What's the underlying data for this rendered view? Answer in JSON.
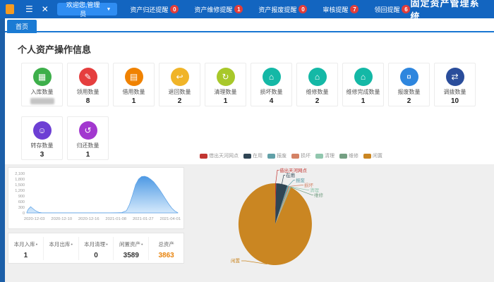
{
  "header": {
    "title": "固定资产管理系统",
    "welcome": "欢迎您,管理员",
    "menu": [
      {
        "label": "资产归还提醒",
        "badge": "0"
      },
      {
        "label": "资产维修提醒",
        "badge": "1"
      },
      {
        "label": "资产报废提醒",
        "badge": "0"
      },
      {
        "label": "审核提醒",
        "badge": "7"
      },
      {
        "label": "领回提醒",
        "badge": "6"
      }
    ]
  },
  "tabs": [
    {
      "label": "首页",
      "active": true
    }
  ],
  "section_title": "个人资产操作信息",
  "cards": [
    {
      "label": "入库数量",
      "value": "",
      "redacted": true,
      "color": "#3daf4a",
      "icon": "bar-chart-icon",
      "glyph": "▦"
    },
    {
      "label": "领用数量",
      "value": "8",
      "redacted": false,
      "color": "#e53e3e",
      "icon": "document-icon",
      "glyph": "✎"
    },
    {
      "label": "借用数量",
      "value": "1",
      "redacted": false,
      "color": "#f08200",
      "icon": "layers-icon",
      "glyph": "▤"
    },
    {
      "label": "退回数量",
      "value": "2",
      "redacted": false,
      "color": "#f0b428",
      "icon": "line-chart-icon",
      "glyph": "↩"
    },
    {
      "label": "清理数量",
      "value": "1",
      "redacted": false,
      "color": "#a8c82a",
      "icon": "clean-icon",
      "glyph": "↻"
    },
    {
      "label": "损坏数量",
      "value": "4",
      "redacted": false,
      "color": "#14b8a6",
      "icon": "house-damage-icon",
      "glyph": "⌂"
    },
    {
      "label": "维修数量",
      "value": "2",
      "redacted": false,
      "color": "#14b8a6",
      "icon": "house-repair-icon",
      "glyph": "⌂"
    },
    {
      "label": "维修完成数量",
      "value": "1",
      "redacted": false,
      "color": "#14b8a6",
      "icon": "house-check-icon",
      "glyph": "⌂"
    },
    {
      "label": "报废数量",
      "value": "2",
      "redacted": false,
      "color": "#2e86de",
      "icon": "money-bag-icon",
      "glyph": "¤"
    },
    {
      "label": "调拨数量",
      "value": "10",
      "redacted": false,
      "color": "#2a4d9b",
      "icon": "transfer-icon",
      "glyph": "⇄"
    },
    {
      "label": "转存数量",
      "value": "3",
      "redacted": false,
      "color": "#6d3fd4",
      "icon": "person-icon",
      "glyph": "☺"
    },
    {
      "label": "归还数量",
      "value": "1",
      "redacted": false,
      "color": "#a238cf",
      "icon": "return-icon",
      "glyph": "↺"
    }
  ],
  "stats": [
    {
      "label": "本月入库",
      "value": "1",
      "dot": "•",
      "highlight": false
    },
    {
      "label": "本月出库",
      "value": "",
      "dot": "•",
      "highlight": false
    },
    {
      "label": "本月清理",
      "value": "0",
      "dot": "•",
      "highlight": false
    },
    {
      "label": "闲置资产",
      "value": "3589",
      "dot": "•",
      "highlight": false
    },
    {
      "label": "总资产",
      "value": "3863",
      "dot": "",
      "highlight": true
    }
  ],
  "chart_data": [
    {
      "type": "area",
      "title": "",
      "xlabel": "",
      "ylabel": "",
      "x_ticks": [
        "2020-12-03",
        "2020-12-10",
        "2020-12-16",
        "2021-01-08",
        "2021-01-27",
        "2021-04-01"
      ],
      "y_tick_labels": [
        "0",
        "300",
        "600",
        "900",
        "1,200",
        "1,500",
        "1,800",
        "2,100"
      ],
      "y_ticks": [
        0,
        300,
        600,
        900,
        1200,
        1500,
        1800,
        2100
      ],
      "ylim": [
        0,
        2100
      ],
      "grid": false,
      "values_at_ticks": [
        330,
        0,
        0,
        10,
        1950,
        0
      ],
      "points": [
        [
          0.0,
          30
        ],
        [
          0.01,
          200
        ],
        [
          0.025,
          330
        ],
        [
          0.04,
          230
        ],
        [
          0.06,
          110
        ],
        [
          0.08,
          30
        ],
        [
          0.1,
          8
        ],
        [
          0.15,
          5
        ],
        [
          0.25,
          5
        ],
        [
          0.35,
          6
        ],
        [
          0.45,
          6
        ],
        [
          0.55,
          8
        ],
        [
          0.6,
          10
        ],
        [
          0.63,
          20
        ],
        [
          0.66,
          120
        ],
        [
          0.68,
          450
        ],
        [
          0.7,
          950
        ],
        [
          0.72,
          1500
        ],
        [
          0.74,
          1800
        ],
        [
          0.76,
          1930
        ],
        [
          0.78,
          1950
        ],
        [
          0.8,
          1900
        ],
        [
          0.82,
          1790
        ],
        [
          0.84,
          1650
        ],
        [
          0.86,
          1450
        ],
        [
          0.88,
          1230
        ],
        [
          0.9,
          980
        ],
        [
          0.92,
          720
        ],
        [
          0.94,
          470
        ],
        [
          0.96,
          260
        ],
        [
          0.98,
          100
        ],
        [
          1.0,
          10
        ]
      ],
      "area_color_top": "#4393e2",
      "area_color_bottom": "#cfe6fb",
      "axis_text_color": "#999999"
    },
    {
      "type": "pie",
      "title": "",
      "legend_position": "top",
      "total": 3863,
      "slices": [
        {
          "name": "借出天河网点",
          "value": 15,
          "color": "#c23531"
        },
        {
          "name": "在用",
          "value": 193,
          "color": "#2f4554"
        },
        {
          "name": "报废",
          "value": 25,
          "color": "#61a0a8"
        },
        {
          "name": "损坏",
          "value": 18,
          "color": "#d48265"
        },
        {
          "name": "清理",
          "value": 12,
          "color": "#91c7ae"
        },
        {
          "name": "维修",
          "value": 11,
          "color": "#749f83"
        },
        {
          "name": "闲置",
          "value": 3589,
          "color": "#ca8622"
        }
      ]
    }
  ],
  "colors": {
    "header_bg": "#1365c0",
    "accent_button": "#2f8df2",
    "badge_red": "#e23c39",
    "highlight_orange": "#e8830c"
  }
}
